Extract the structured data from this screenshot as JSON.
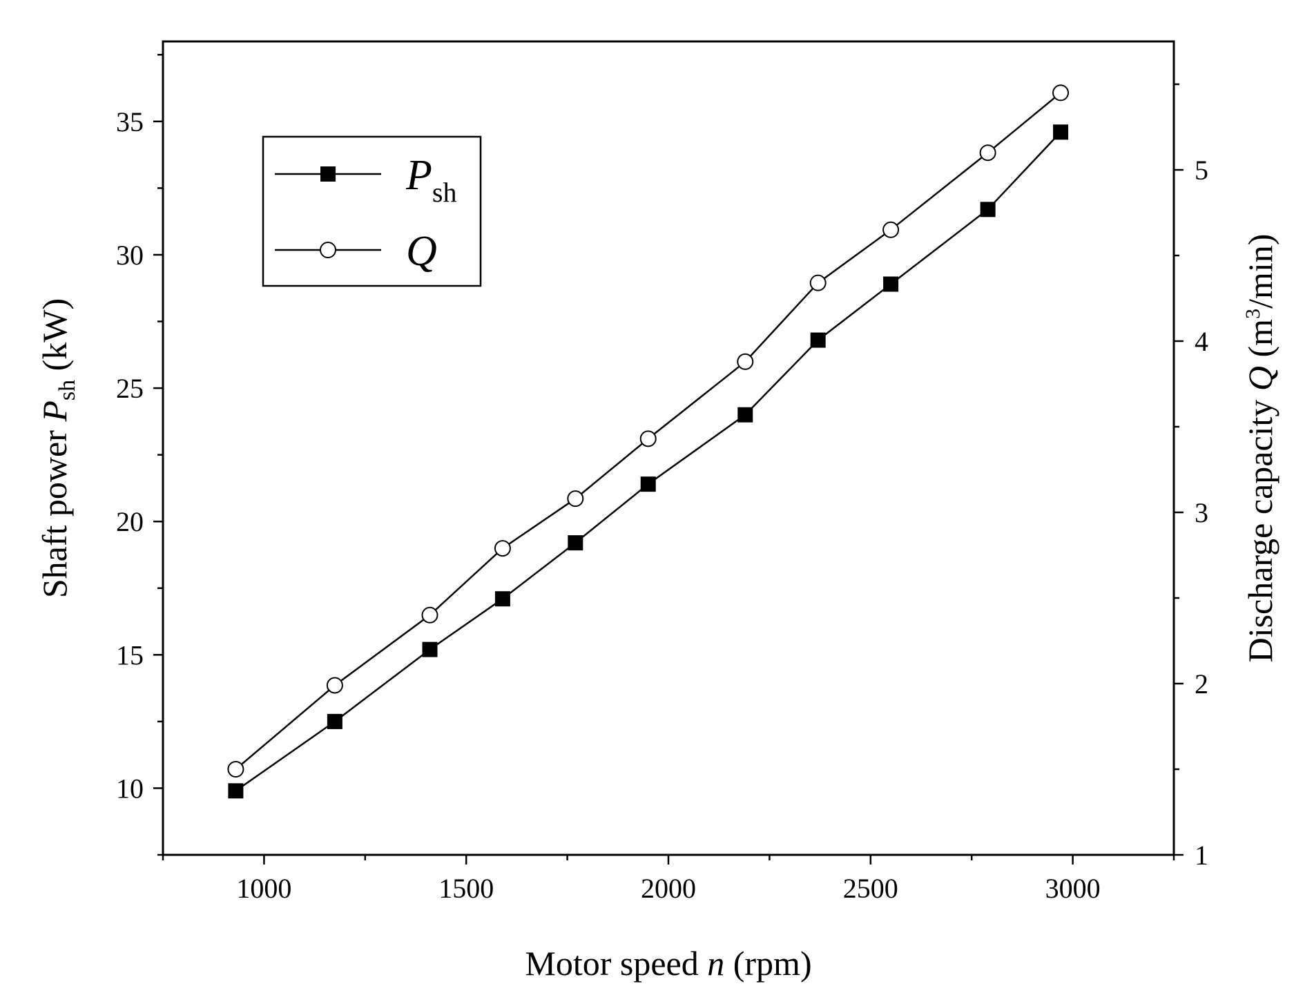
{
  "chart_data": {
    "type": "line",
    "title": "",
    "xlabel": {
      "prefix": "Motor speed ",
      "var": "n",
      "suffix": " (rpm)"
    },
    "ylabel_left": {
      "prefix": "Shaft power ",
      "var": "P",
      "sub": "sh",
      "suffix": " (kW)"
    },
    "ylabel_right": {
      "prefix": "Discharge capacity ",
      "var": "Q",
      "unit_pre": " (m",
      "sup": "3",
      "unit_post": "/min)"
    },
    "xlim": [
      750,
      3250
    ],
    "ylim_left": [
      7.5,
      38
    ],
    "ylim_right": [
      1,
      5.75
    ],
    "x_ticks": [
      1000,
      1500,
      2000,
      2500,
      3000
    ],
    "x_tick_labels": [
      "1000",
      "1500",
      "2000",
      "2500",
      "3000"
    ],
    "y_left_ticks": [
      10,
      15,
      20,
      25,
      30,
      35
    ],
    "y_left_tick_labels": [
      "10",
      "15",
      "20",
      "25",
      "30",
      "35"
    ],
    "y_right_ticks": [
      1,
      2,
      3,
      4,
      5
    ],
    "y_right_tick_labels": [
      "1",
      "2",
      "3",
      "4",
      "5"
    ],
    "x": [
      930,
      1175,
      1410,
      1590,
      1770,
      1950,
      2190,
      2370,
      2550,
      2790,
      2970
    ],
    "series": [
      {
        "name": "P_sh",
        "legend_var": "P",
        "legend_sub": "sh",
        "axis": "left",
        "marker": "filled-square",
        "values": [
          9.9,
          12.5,
          15.2,
          17.1,
          19.2,
          21.4,
          24.0,
          26.8,
          28.9,
          31.7,
          34.6
        ]
      },
      {
        "name": "Q",
        "legend_var": "Q",
        "legend_sub": "",
        "axis": "right",
        "marker": "open-circle",
        "values": [
          1.5,
          1.99,
          2.4,
          2.79,
          3.08,
          3.43,
          3.88,
          4.34,
          4.65,
          5.1,
          5.45
        ]
      }
    ],
    "legend_position": "top-left",
    "grid": false
  }
}
